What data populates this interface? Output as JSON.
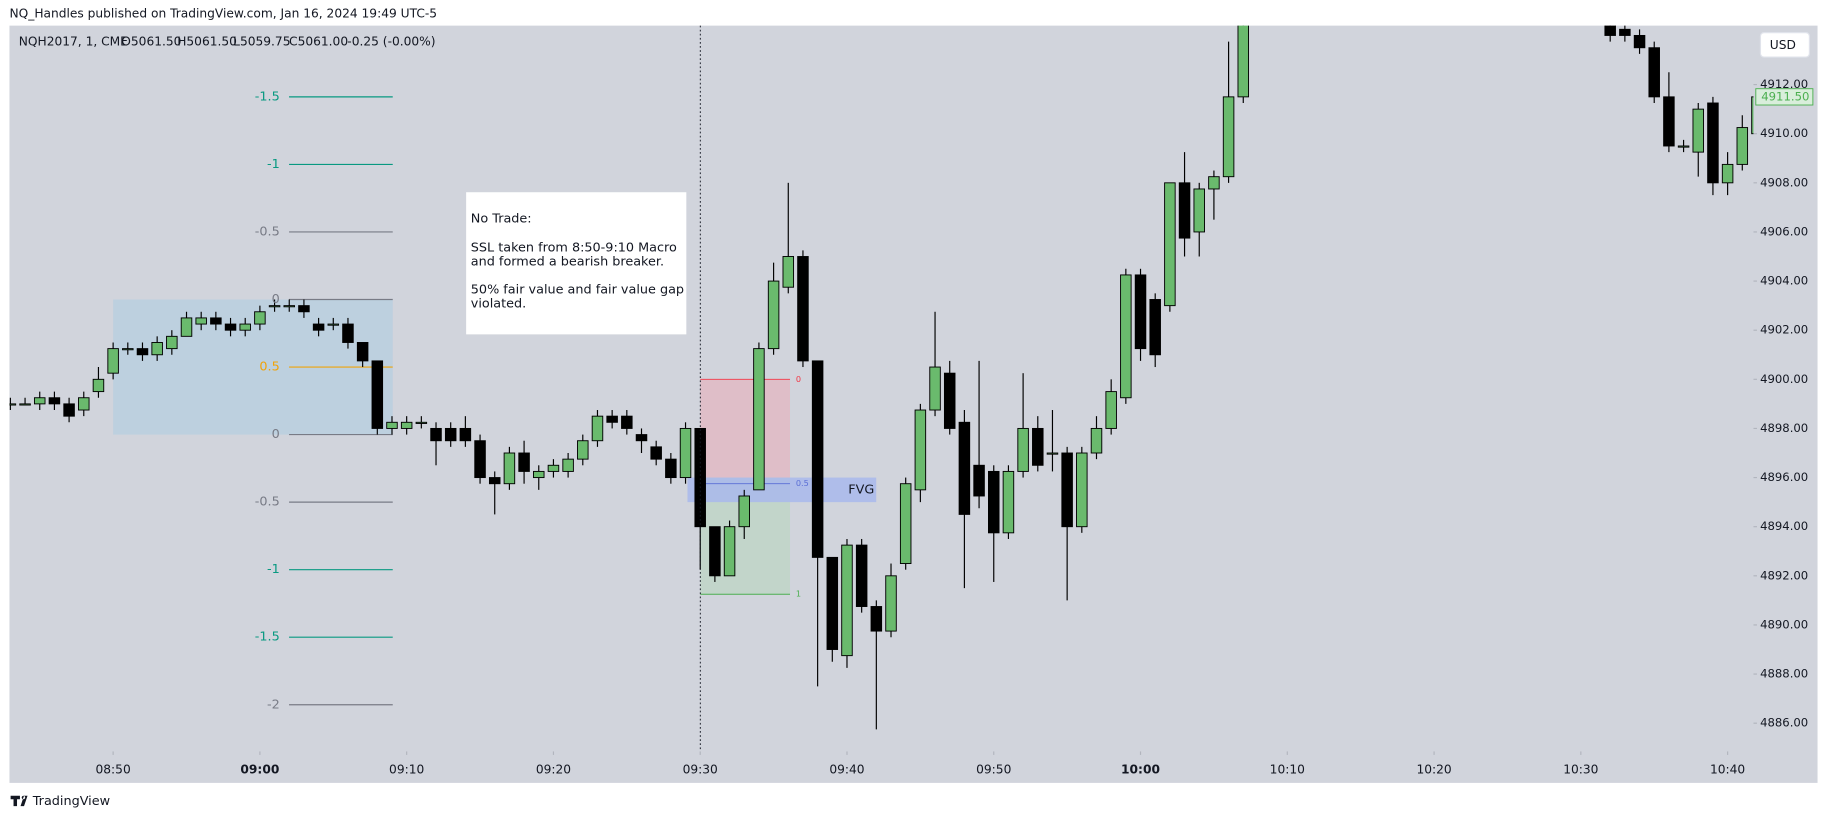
{
  "header": "NQ_Handles published on TradingView.com, Jan 16, 2024 19:49 UTC-5",
  "footer": "TradingView",
  "chart_data": {
    "type": "candlestick",
    "legend": {
      "symbol": "NQH2017, 1, CME",
      "open": "O5061.50",
      "high": "H5061.50",
      "low": "L5059.75",
      "close": "C5061.00",
      "change": "-0.25 (-0.00%)"
    },
    "currency": "USD",
    "last_price": {
      "value": 4911.5,
      "label": "4911.50"
    },
    "up_color": "#6aba6d",
    "down_color": "#000000",
    "x": [
      "08:43",
      "08:44",
      "08:45",
      "08:46",
      "08:47",
      "08:48",
      "08:49",
      "08:50",
      "08:51",
      "08:52",
      "08:53",
      "08:54",
      "08:55",
      "08:56",
      "08:57",
      "08:58",
      "08:59",
      "09:00",
      "09:01",
      "09:02",
      "09:03",
      "09:04",
      "09:05",
      "09:06",
      "09:07",
      "09:08",
      "09:09",
      "09:10",
      "09:11",
      "09:12",
      "09:13",
      "09:14",
      "09:15",
      "09:16",
      "09:17",
      "09:18",
      "09:19",
      "09:20",
      "09:21",
      "09:22",
      "09:23",
      "09:24",
      "09:25",
      "09:26",
      "09:27",
      "09:28",
      "09:29",
      "09:30",
      "09:31",
      "09:32",
      "09:33",
      "09:34",
      "09:35",
      "09:36",
      "09:37",
      "09:38",
      "09:39",
      "09:40",
      "09:41",
      "09:42",
      "09:43",
      "09:44",
      "09:45",
      "09:46",
      "09:47",
      "09:48",
      "09:49",
      "09:50",
      "09:51",
      "09:52",
      "09:53",
      "09:54",
      "09:55",
      "09:56",
      "09:57",
      "09:58",
      "09:59",
      "10:00",
      "10:01",
      "10:02",
      "10:03",
      "10:04",
      "10:05",
      "10:06",
      "10:07",
      "10:32",
      "10:33",
      "10:34",
      "10:35",
      "10:36",
      "10:37",
      "10:38",
      "10:39",
      "10:40",
      "10:41",
      "10:42"
    ],
    "open": [
      4899,
      4899,
      4899,
      4899.25,
      4899,
      4898.75,
      4899.5,
      4900.25,
      4901.25,
      4901.25,
      4901,
      4901.25,
      4901.75,
      4902.25,
      4902.5,
      4902.25,
      4902,
      4902.25,
      4903,
      4903,
      4903,
      4902.25,
      4902.25,
      4902.25,
      4901.5,
      4900.75,
      4898,
      4898,
      4898.25,
      4898,
      4898,
      4898,
      4897.5,
      4896,
      4895.75,
      4897,
      4896,
      4896.25,
      4896.25,
      4896.75,
      4897.5,
      4898.5,
      4898.5,
      4897.75,
      4897.25,
      4896.75,
      4896,
      4898,
      4894,
      4892,
      4894,
      4895.5,
      4901.25,
      4903.75,
      4905,
      4900.75,
      4892.75,
      4888.75,
      4893.25,
      4890.75,
      4889.75,
      4892.5,
      4895.5,
      4898.75,
      4900.25,
      4898.25,
      4896.5,
      4896.25,
      4893.75,
      4896.25,
      4898,
      4897,
      4897,
      4894,
      4897,
      4898,
      4899.25,
      4904.25,
      4903.25,
      4903,
      4908,
      4906,
      4907.75,
      4908.25,
      4911.5,
      4915,
      4914.25,
      4914,
      4913.5,
      4911.5,
      4909.5,
      4909.25,
      4911.25,
      4908,
      4908.75,
      4910
    ],
    "high": [
      4899.25,
      4899.25,
      4899.5,
      4899.5,
      4899.25,
      4899.5,
      4900.5,
      4901.5,
      4901.5,
      4901.5,
      4901.75,
      4902,
      4902.75,
      4902.75,
      4902.75,
      4902.5,
      4902.5,
      4903,
      4903.25,
      4903.25,
      4903.25,
      4902.5,
      4902.5,
      4902.5,
      4901.5,
      4900.75,
      4898.5,
      4898.5,
      4898.5,
      4898.25,
      4898.25,
      4898.5,
      4897.75,
      4896.25,
      4897.25,
      4897.5,
      4896.5,
      4896.75,
      4897,
      4897.75,
      4898.75,
      4898.75,
      4898.75,
      4898,
      4897.5,
      4897,
      4898.25,
      4898,
      4894,
      4894.25,
      4895.5,
      4901.5,
      4904.75,
      4908,
      4905.25,
      4900.75,
      4892.75,
      4893.5,
      4893.5,
      4891,
      4892.5,
      4896,
      4899,
      4902.75,
      4900.75,
      4898.75,
      4900.75,
      4896.5,
      4896.5,
      4900.25,
      4898.5,
      4898.75,
      4897.25,
      4897.25,
      4898.5,
      4900,
      4904.5,
      4904.5,
      4903.5,
      4908,
      4909.25,
      4908,
      4908.5,
      4913.75,
      4915.25,
      4915.5,
      4914.5,
      4914.25,
      4913.75,
      4912.5,
      4909.75,
      4911.25,
      4911.5,
      4909.25,
      4910.75,
      4912
    ],
    "low": [
      4898.75,
      4899,
      4898.75,
      4898.75,
      4898.25,
      4898.5,
      4899.25,
      4900,
      4901,
      4900.75,
      4900.75,
      4901,
      4901.75,
      4902,
      4902,
      4901.75,
      4901.75,
      4902,
      4902.75,
      4902.75,
      4902.5,
      4901.75,
      4902,
      4901.25,
      4900.5,
      4897.75,
      4897.75,
      4897.75,
      4898,
      4896.5,
      4897.25,
      4897.25,
      4895.75,
      4894.5,
      4895.5,
      4895.75,
      4895.5,
      4896,
      4896,
      4896.5,
      4897.25,
      4898,
      4897.75,
      4897,
      4896.5,
      4895.75,
      4895.75,
      4892.25,
      4891.75,
      4892,
      4893.5,
      4895.5,
      4901,
      4903.5,
      4900.5,
      4887.5,
      4888.5,
      4888.25,
      4890.5,
      4885.75,
      4889.5,
      4892.25,
      4895,
      4898.5,
      4897.75,
      4891.5,
      4894.75,
      4891.75,
      4893.5,
      4896,
      4896.25,
      4896.25,
      4891,
      4893.75,
      4896.75,
      4897.75,
      4899,
      4900.75,
      4900.5,
      4902.75,
      4905,
      4905,
      4906.5,
      4908,
      4911.25,
      4913.75,
      4913.75,
      4913.25,
      4911.25,
      4909.25,
      4909.25,
      4908.25,
      4907.5,
      4907.5,
      4908.5,
      4909.75
    ],
    "close": [
      4899,
      4899,
      4899.25,
      4899,
      4898.5,
      4899.25,
      4900,
      4901.25,
      4901.25,
      4901,
      4901.5,
      4901.75,
      4902.5,
      4902.5,
      4902.25,
      4902,
      4902.25,
      4902.75,
      4903,
      4903,
      4902.75,
      4902,
      4902.25,
      4901.5,
      4900.75,
      4898,
      4898.25,
      4898.25,
      4898.25,
      4897.5,
      4897.5,
      4897.5,
      4896,
      4895.75,
      4897,
      4896.25,
      4896.25,
      4896.5,
      4896.75,
      4897.5,
      4898.5,
      4898.25,
      4898,
      4897.5,
      4896.75,
      4896,
      4898,
      4894,
      4892,
      4894,
      4895.25,
      4901.25,
      4904,
      4905,
      4900.75,
      4892.75,
      4889,
      4893.25,
      4890.75,
      4889.75,
      4892,
      4895.75,
      4898.75,
      4900.5,
      4898,
      4894.5,
      4895.25,
      4893.75,
      4896.25,
      4898,
      4896.5,
      4897,
      4894,
      4897,
      4898,
      4899.5,
      4904.25,
      4901.25,
      4901,
      4908,
      4905.75,
      4907.75,
      4908.25,
      4911.5,
      4915,
      4914,
      4914,
      4913.5,
      4911.5,
      4909.5,
      4909.5,
      4911,
      4908,
      4908.75,
      4910.25,
      4911.5
    ],
    "xlim": [
      "08:42",
      "10:42"
    ],
    "xticks": [
      "08:50",
      "09:00",
      "09:10",
      "09:20",
      "09:30",
      "09:40",
      "09:50",
      "10:00",
      "10:10",
      "10:20",
      "10:30",
      "10:40"
    ],
    "ylim": [
      4884.85,
      4914.4
    ],
    "yticks": [
      {
        "value": 4886,
        "label": "4886.00"
      },
      {
        "value": 4888,
        "label": "4888.00"
      },
      {
        "value": 4890,
        "label": "4890.00"
      },
      {
        "value": 4892,
        "label": "4892.00"
      },
      {
        "value": 4894,
        "label": "4894.00"
      },
      {
        "value": 4896,
        "label": "4896.00"
      },
      {
        "value": 4898,
        "label": "4898.00"
      },
      {
        "value": 4900,
        "label": "4900.00"
      },
      {
        "value": 4902,
        "label": "4902.00"
      },
      {
        "value": 4904,
        "label": "4904.00"
      },
      {
        "value": 4906,
        "label": "4906.00"
      },
      {
        "value": 4908,
        "label": "4908.00"
      },
      {
        "value": 4910,
        "label": "4910.00"
      },
      {
        "value": 4912,
        "label": "4912.00"
      }
    ],
    "fib_levels": [
      {
        "level": -1.5,
        "price": 4911.5,
        "color": "#089981"
      },
      {
        "level": -1,
        "price": 4908.75,
        "color": "#089981"
      },
      {
        "level": -0.5,
        "price": 4906,
        "color": "#787b86"
      },
      {
        "level": 0,
        "price": 4903.25,
        "color": "#787b86"
      },
      {
        "level": 0.5,
        "price": 4900.5,
        "color": "#f0a30a"
      },
      {
        "level": 0,
        "price": 4897.75,
        "color": "#787b86"
      },
      {
        "level": -0.5,
        "price": 4895,
        "color": "#787b86"
      },
      {
        "level": -1,
        "price": 4892.25,
        "color": "#089981"
      },
      {
        "level": -1.5,
        "price": 4889.5,
        "color": "#089981"
      },
      {
        "level": -2,
        "price": 4886.75,
        "color": "#787b86"
      }
    ],
    "zones": [
      {
        "top": 4903.25,
        "bottom": 4897.75,
        "color": "#b5cfe0"
      },
      {
        "top": 4900,
        "bottom": 4896,
        "color": "#e3b7c2"
      },
      {
        "top": 4896,
        "bottom": 4891.25,
        "color": "#bcd6c4"
      }
    ],
    "fvg": {
      "label": "FVG",
      "top": 4896,
      "bottom": 4895,
      "color": "#a9b9ec"
    },
    "tool_levels": [
      {
        "level": 0,
        "price": 4900,
        "color": "#f23645"
      },
      {
        "level": 0.5,
        "price": 4895.75,
        "color": "#5b6fd6"
      },
      {
        "level": 1,
        "price": 4891.25,
        "color": "#4caf50"
      }
    ],
    "note": {
      "title": "No Trade:",
      "paragraphs": [
        [
          "SSL taken from 8:50-9:10 Macro",
          "and formed a bearish breaker."
        ],
        [
          "50% fair value and fair value gap",
          "violated."
        ]
      ]
    }
  }
}
